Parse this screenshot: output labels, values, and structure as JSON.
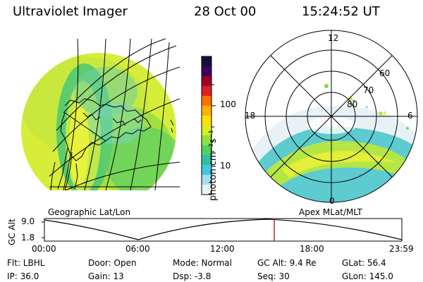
{
  "header": {
    "title": "Ultraviolet Imager",
    "date": "28 Oct 00",
    "time": "15:24:52 UT"
  },
  "left_panel": {
    "caption": "Geographic Lat/Lon"
  },
  "right_panel": {
    "caption": "Apex MLat/MLT",
    "mlt_labels": [
      "12",
      "18",
      "6",
      "0"
    ],
    "lat_labels": [
      "60",
      "70",
      "80"
    ]
  },
  "colorbar": {
    "unit_label": "photon cm⁻²s⁻¹",
    "ticks": [
      "100",
      "10"
    ],
    "colors": [
      "#101040",
      "#400060",
      "#a00020",
      "#e02020",
      "#ff7000",
      "#ffb000",
      "#ffe000",
      "#d8f020",
      "#90e040",
      "#50d060",
      "#30c0a0",
      "#40c8e0",
      "#a0e0f0",
      "#e8f4fa"
    ]
  },
  "altitude_plot": {
    "ylabel": "GC Alt",
    "y_ticks": [
      "9.0",
      "1.8"
    ],
    "x_ticks": [
      "00:00",
      "06:00",
      "12:00",
      "18:00",
      "23:59"
    ],
    "current_time_fraction": 0.643,
    "marker_color": "#cc2222"
  },
  "info": {
    "filter": "Flt: LBHL",
    "ip": "IP: 36.0",
    "door": "Door: Open",
    "gain": "Gain: 13",
    "mode": "Mode: Normal",
    "dsp": "Dsp:   -3.8",
    "gc_alt": "GC Alt: 9.4 Re",
    "seq": "Seq: 30",
    "glat": "GLat:  56.4",
    "glon": "GLon: 145.0"
  }
}
